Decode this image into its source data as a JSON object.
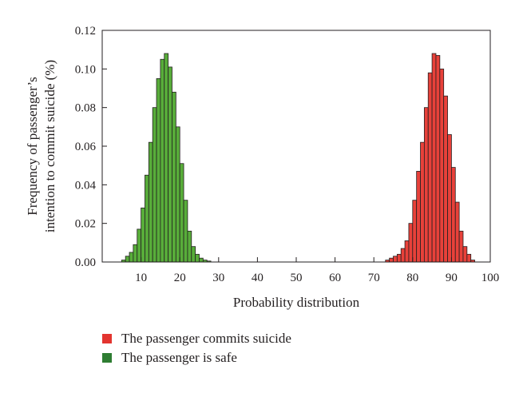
{
  "chart_data": {
    "type": "bar",
    "xlabel": "Probability distribution",
    "ylabel_lines": [
      "Frequency of passenger’s",
      "intention to commit suicide (%)"
    ],
    "xlim": [
      0,
      100
    ],
    "ylim": [
      0,
      0.12
    ],
    "xticks": [
      10,
      20,
      30,
      40,
      50,
      60,
      70,
      80,
      90,
      100
    ],
    "xtick_labels": [
      "10",
      "20",
      "30",
      "40",
      "50",
      "60",
      "70",
      "80",
      "90",
      "100"
    ],
    "yticks": [
      0,
      0.02,
      0.04,
      0.06,
      0.08,
      0.1,
      0.12
    ],
    "ytick_labels": [
      "0.00",
      "0.02",
      "0.04",
      "0.06",
      "0.08",
      "0.10",
      "0.12"
    ],
    "bin_width": 1,
    "series": [
      {
        "name": "The passenger commits suicide",
        "color": "#e3342f",
        "x": [
          73,
          74,
          75,
          76,
          77,
          78,
          79,
          80,
          81,
          82,
          83,
          84,
          85,
          86,
          87,
          88,
          89,
          90,
          91,
          92,
          93,
          94,
          95
        ],
        "values": [
          0.001,
          0.002,
          0.003,
          0.004,
          0.007,
          0.011,
          0.02,
          0.032,
          0.047,
          0.062,
          0.08,
          0.098,
          0.108,
          0.107,
          0.1,
          0.086,
          0.066,
          0.049,
          0.031,
          0.016,
          0.008,
          0.004,
          0.001
        ]
      },
      {
        "name": "The passenger is safe",
        "color": "#2e7d32",
        "x": [
          5,
          6,
          7,
          8,
          9,
          10,
          11,
          12,
          13,
          14,
          15,
          16,
          17,
          18,
          19,
          20,
          21,
          22,
          23,
          24,
          25,
          26,
          27
        ],
        "values": [
          0.001,
          0.003,
          0.005,
          0.009,
          0.017,
          0.028,
          0.045,
          0.062,
          0.08,
          0.095,
          0.105,
          0.108,
          0.101,
          0.088,
          0.07,
          0.051,
          0.032,
          0.016,
          0.008,
          0.004,
          0.002,
          0.001,
          0.0005
        ]
      }
    ],
    "bar_fill_colors": {
      "The passenger commits suicide": "#e8413a",
      "The passenger is safe": "#58ad3a"
    }
  },
  "legend": {
    "items": [
      {
        "label": "The passenger commits suicide",
        "color": "#e3342f"
      },
      {
        "label": "The passenger is safe",
        "color": "#2e7d32"
      }
    ]
  }
}
